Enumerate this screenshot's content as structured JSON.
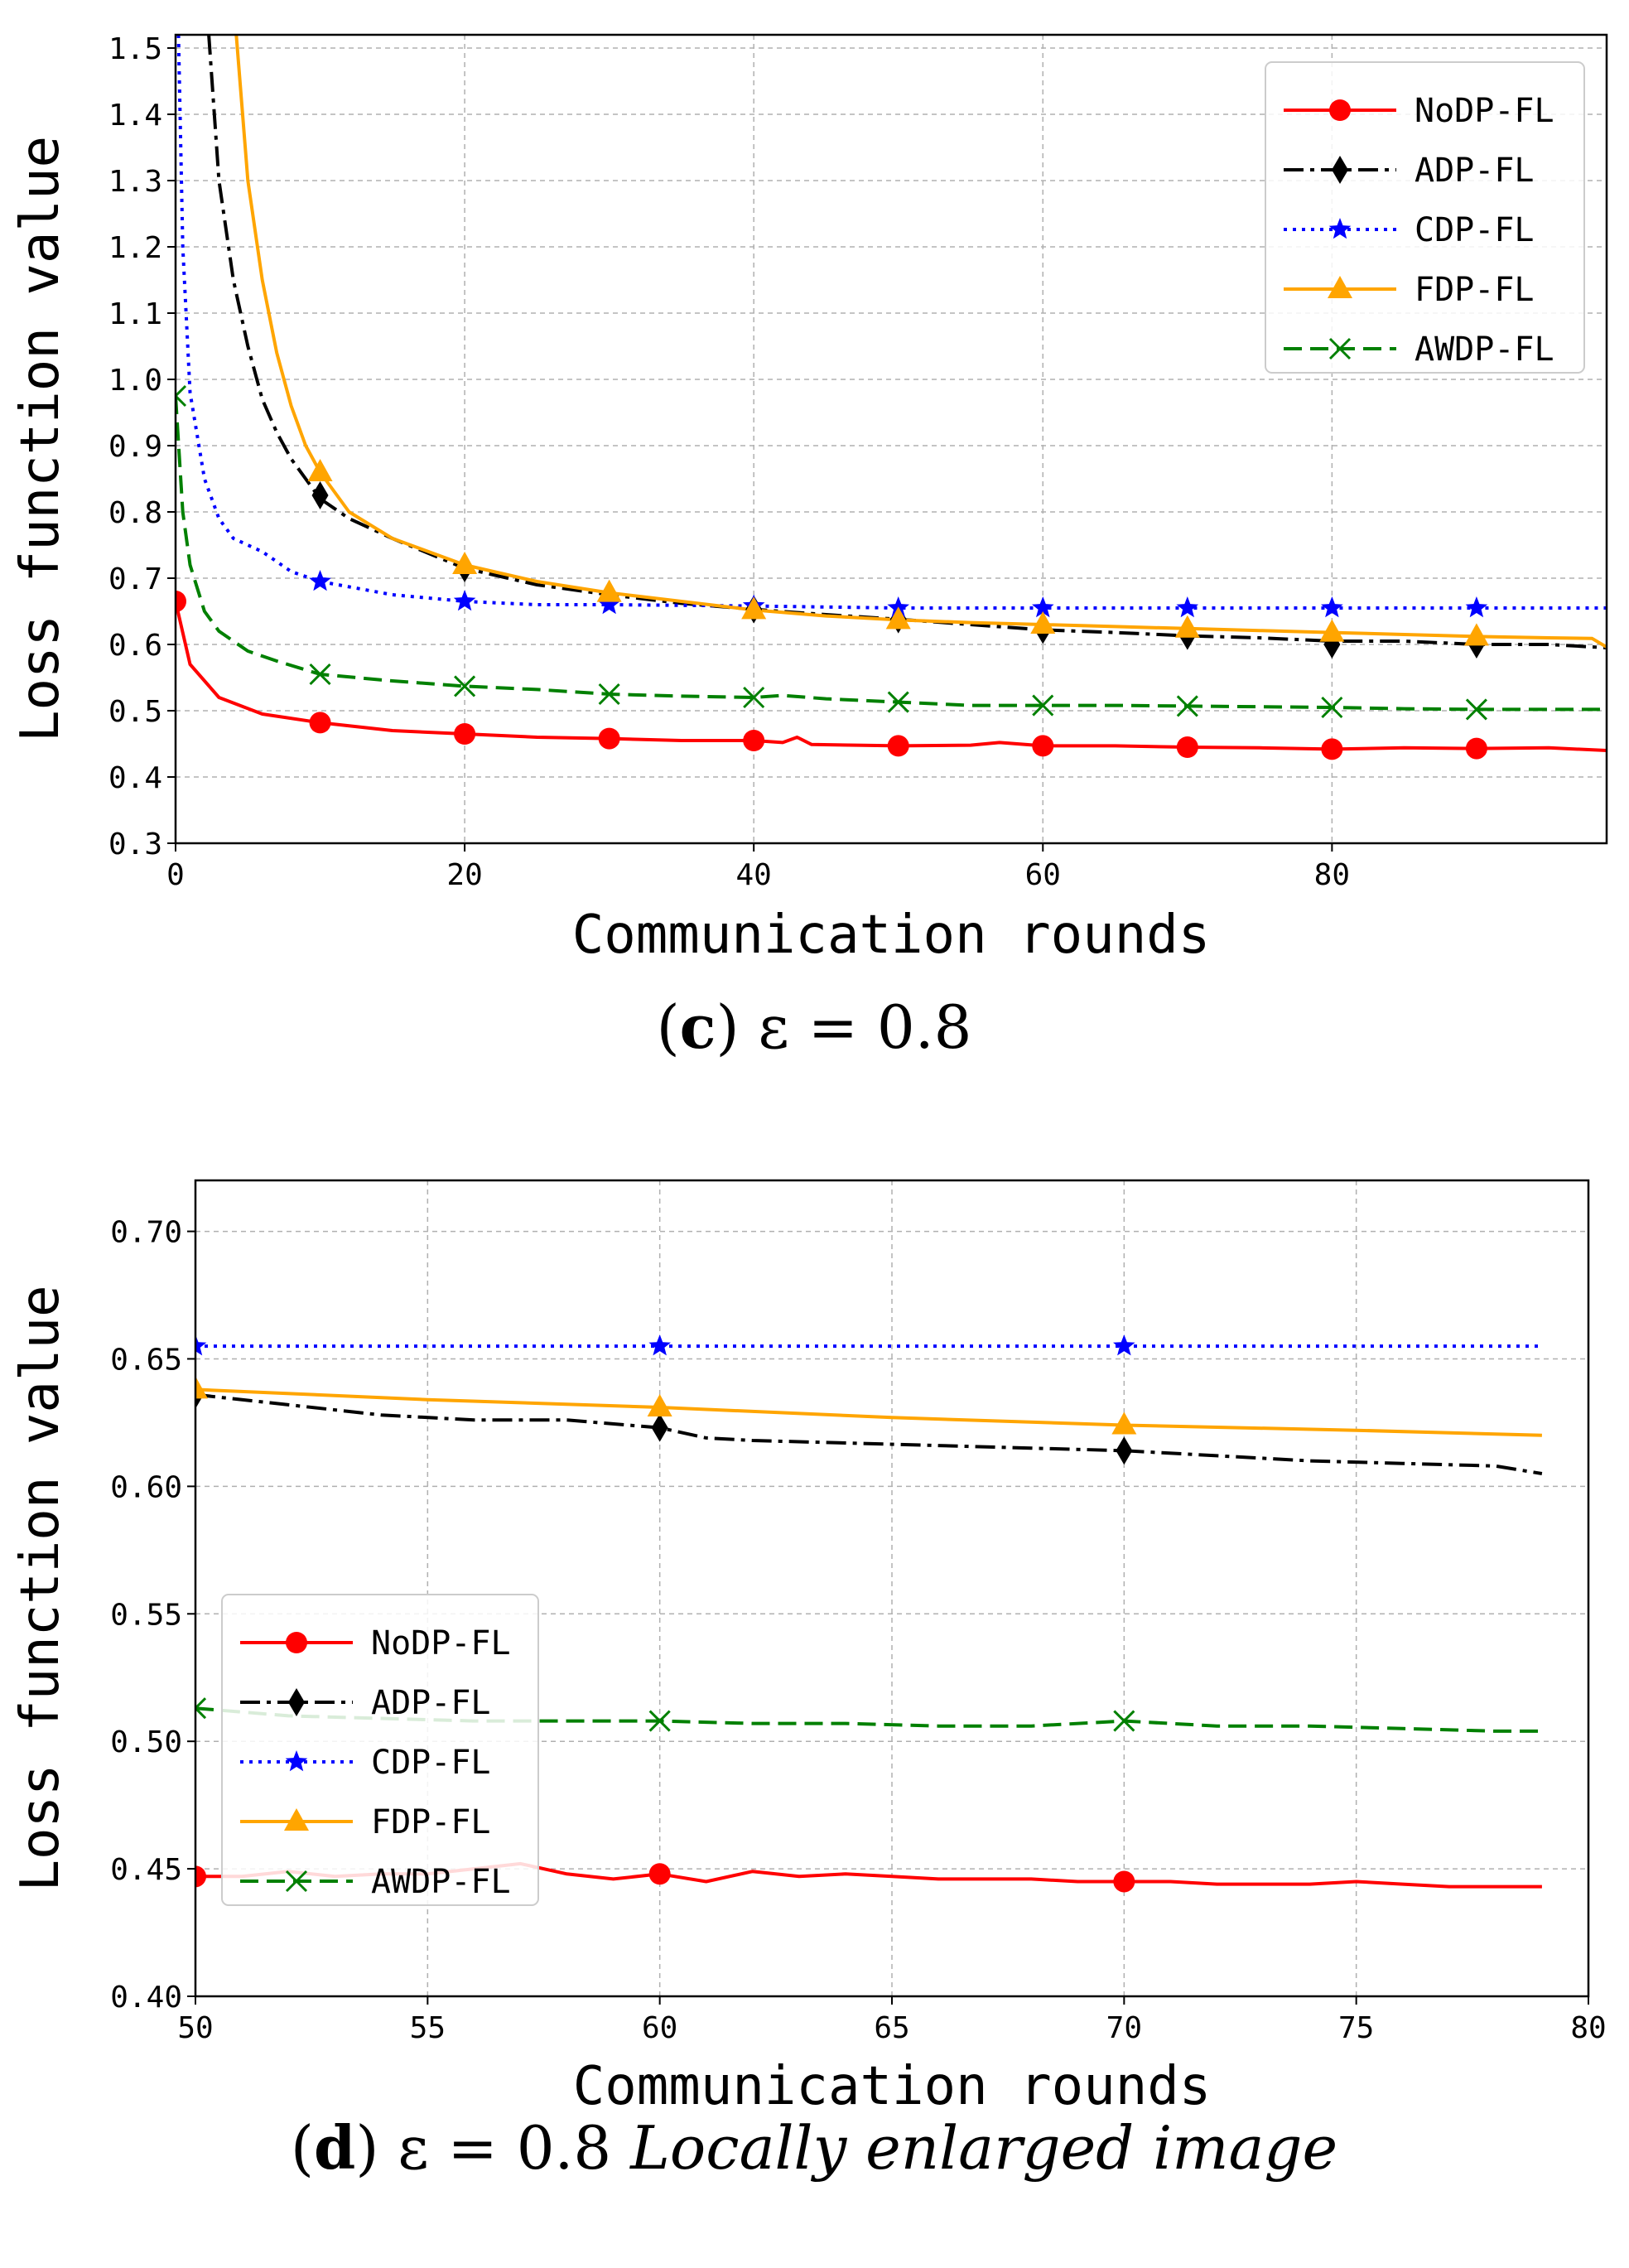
{
  "chart_data": [
    {
      "id": "c",
      "type": "line",
      "caption": {
        "label": "c",
        "text": "ε = 0.8",
        "suffix": ""
      },
      "xlabel": "Communication rounds",
      "ylabel": "Loss function value",
      "xlim": [
        0,
        99
      ],
      "ylim": [
        0.3,
        1.52
      ],
      "xticks": [
        0,
        20,
        40,
        60,
        80
      ],
      "xtick_labels": [
        "0",
        "20",
        "40",
        "60",
        "80"
      ],
      "yticks": [
        0.3,
        0.4,
        0.5,
        0.6,
        0.7,
        0.8,
        0.9,
        1.0,
        1.1,
        1.2,
        1.3,
        1.4,
        1.5
      ],
      "ytick_labels": [
        "0.3",
        "0.4",
        "0.5",
        "0.6",
        "0.7",
        "0.8",
        "0.9",
        "1.0",
        "1.1",
        "1.2",
        "1.3",
        "1.4",
        "1.5"
      ],
      "grid": true,
      "legend": {
        "position": "top-right",
        "entries": [
          "NoDP-FL",
          "ADP-FL",
          "CDP-FL",
          "FDP-FL",
          "AWDP-FL"
        ]
      },
      "series": [
        {
          "name": "NoDP-FL",
          "color": "#ff0000",
          "dash": "solid",
          "marker": "circle",
          "x": [
            0,
            1,
            3,
            6,
            10,
            15,
            20,
            25,
            30,
            35,
            40,
            42,
            43,
            44,
            50,
            55,
            57,
            60,
            65,
            70,
            75,
            80,
            85,
            90,
            95,
            99
          ],
          "y": [
            0.665,
            0.57,
            0.52,
            0.495,
            0.482,
            0.47,
            0.465,
            0.46,
            0.458,
            0.455,
            0.455,
            0.452,
            0.46,
            0.449,
            0.447,
            0.448,
            0.452,
            0.447,
            0.447,
            0.445,
            0.444,
            0.442,
            0.444,
            0.443,
            0.444,
            0.44
          ],
          "markers_x": [
            0,
            10,
            20,
            30,
            40,
            50,
            60,
            70,
            80,
            90
          ],
          "markers_y": [
            0.665,
            0.482,
            0.465,
            0.458,
            0.455,
            0.447,
            0.447,
            0.445,
            0.442,
            0.443
          ]
        },
        {
          "name": "ADP-FL",
          "color": "#000000",
          "dash": "dashdot",
          "marker": "diamond",
          "x": [
            2.3,
            3,
            4,
            5,
            6,
            7,
            8,
            10,
            12,
            15,
            20,
            25,
            30,
            35,
            40,
            45,
            50,
            55,
            60,
            65,
            70,
            75,
            80,
            85,
            90,
            95,
            99
          ],
          "y": [
            1.52,
            1.3,
            1.15,
            1.05,
            0.97,
            0.92,
            0.88,
            0.82,
            0.79,
            0.76,
            0.715,
            0.69,
            0.675,
            0.662,
            0.653,
            0.645,
            0.638,
            0.63,
            0.622,
            0.618,
            0.613,
            0.61,
            0.605,
            0.605,
            0.6,
            0.6,
            0.595
          ],
          "markers_x": [
            10,
            20,
            30,
            40,
            50,
            60,
            70,
            80,
            90
          ],
          "markers_y": [
            0.825,
            0.715,
            0.675,
            0.653,
            0.638,
            0.622,
            0.613,
            0.6,
            0.6
          ]
        },
        {
          "name": "CDP-FL",
          "color": "#0000ff",
          "dash": "dotted",
          "marker": "star",
          "x": [
            0.2,
            0.5,
            1,
            2,
            3,
            4,
            6,
            8,
            10,
            15,
            20,
            25,
            30,
            40,
            50,
            60,
            70,
            80,
            90,
            99
          ],
          "y": [
            1.52,
            1.2,
            0.98,
            0.85,
            0.79,
            0.76,
            0.74,
            0.71,
            0.695,
            0.675,
            0.665,
            0.66,
            0.66,
            0.658,
            0.655,
            0.655,
            0.655,
            0.655,
            0.655,
            0.655
          ],
          "markers_x": [
            10,
            20,
            30,
            40,
            50,
            60,
            70,
            80,
            90
          ],
          "markers_y": [
            0.695,
            0.665,
            0.66,
            0.658,
            0.655,
            0.655,
            0.655,
            0.655,
            0.655
          ]
        },
        {
          "name": "FDP-FL",
          "color": "#ffa500",
          "dash": "solid",
          "marker": "triangle",
          "x": [
            4.2,
            5,
            6,
            7,
            8,
            9,
            10,
            12,
            15,
            20,
            25,
            30,
            35,
            40,
            45,
            50,
            55,
            60,
            65,
            70,
            75,
            80,
            85,
            90,
            95,
            98,
            99
          ],
          "y": [
            1.52,
            1.3,
            1.15,
            1.04,
            0.96,
            0.9,
            0.86,
            0.8,
            0.76,
            0.72,
            0.695,
            0.678,
            0.665,
            0.652,
            0.643,
            0.637,
            0.633,
            0.63,
            0.627,
            0.624,
            0.621,
            0.618,
            0.615,
            0.612,
            0.61,
            0.609,
            0.596
          ],
          "markers_x": [
            10,
            20,
            30,
            40,
            50,
            60,
            70,
            80,
            90
          ],
          "markers_y": [
            0.86,
            0.72,
            0.678,
            0.652,
            0.637,
            0.63,
            0.624,
            0.618,
            0.612
          ]
        },
        {
          "name": "AWDP-FL",
          "color": "#008000",
          "dash": "dashed",
          "marker": "x",
          "x": [
            0,
            0.5,
            1,
            2,
            3,
            5,
            7,
            10,
            15,
            20,
            25,
            30,
            35,
            40,
            42,
            45,
            50,
            55,
            60,
            65,
            70,
            75,
            80,
            85,
            90,
            95,
            99
          ],
          "y": [
            0.975,
            0.8,
            0.72,
            0.65,
            0.62,
            0.59,
            0.575,
            0.555,
            0.545,
            0.537,
            0.532,
            0.525,
            0.522,
            0.52,
            0.523,
            0.518,
            0.513,
            0.508,
            0.508,
            0.508,
            0.507,
            0.506,
            0.505,
            0.503,
            0.502,
            0.502,
            0.502
          ],
          "markers_x": [
            0,
            10,
            20,
            30,
            40,
            50,
            60,
            70,
            80,
            90
          ],
          "markers_y": [
            0.975,
            0.555,
            0.537,
            0.525,
            0.52,
            0.513,
            0.508,
            0.507,
            0.505,
            0.502
          ]
        }
      ]
    },
    {
      "id": "d",
      "type": "line",
      "caption": {
        "label": "d",
        "text": "ε = 0.8",
        "suffix": "Locally enlarged image"
      },
      "xlabel": "Communication rounds",
      "ylabel": "Loss function value",
      "xlim": [
        50,
        80
      ],
      "ylim": [
        0.4,
        0.72
      ],
      "xticks": [
        50,
        55,
        60,
        65,
        70,
        75,
        80
      ],
      "xtick_labels": [
        "50",
        "55",
        "60",
        "65",
        "70",
        "75",
        "80"
      ],
      "yticks": [
        0.4,
        0.45,
        0.5,
        0.55,
        0.6,
        0.65,
        0.7
      ],
      "ytick_labels": [
        "0.40",
        "0.45",
        "0.50",
        "0.55",
        "0.60",
        "0.65",
        "0.70"
      ],
      "grid": true,
      "legend": {
        "position": "center-left",
        "entries": [
          "NoDP-FL",
          "ADP-FL",
          "CDP-FL",
          "FDP-FL",
          "AWDP-FL"
        ]
      },
      "series": [
        {
          "name": "NoDP-FL",
          "color": "#ff0000",
          "dash": "solid",
          "marker": "circle",
          "x": [
            50,
            51,
            52,
            53,
            54,
            55,
            56,
            57,
            58,
            59,
            60,
            61,
            62,
            63,
            64,
            65,
            66,
            67,
            68,
            69,
            70,
            71,
            72,
            73,
            74,
            75,
            76,
            77,
            78,
            79
          ],
          "y": [
            0.447,
            0.447,
            0.449,
            0.447,
            0.448,
            0.448,
            0.45,
            0.452,
            0.448,
            0.446,
            0.448,
            0.445,
            0.449,
            0.447,
            0.448,
            0.447,
            0.446,
            0.446,
            0.446,
            0.445,
            0.445,
            0.445,
            0.444,
            0.444,
            0.444,
            0.445,
            0.444,
            0.443,
            0.443,
            0.443
          ],
          "markers_x": [
            50,
            60,
            70
          ],
          "markers_y": [
            0.447,
            0.448,
            0.445
          ]
        },
        {
          "name": "ADP-FL",
          "color": "#000000",
          "dash": "dashdot",
          "marker": "diamond",
          "x": [
            50,
            52,
            54,
            56,
            58,
            60,
            61,
            62,
            64,
            66,
            68,
            70,
            72,
            74,
            76,
            78,
            79
          ],
          "y": [
            0.636,
            0.632,
            0.628,
            0.626,
            0.626,
            0.623,
            0.619,
            0.618,
            0.617,
            0.616,
            0.615,
            0.614,
            0.612,
            0.61,
            0.609,
            0.608,
            0.605
          ],
          "markers_x": [
            50,
            60,
            70
          ],
          "markers_y": [
            0.636,
            0.623,
            0.614
          ]
        },
        {
          "name": "CDP-FL",
          "color": "#0000ff",
          "dash": "dotted",
          "marker": "star",
          "x": [
            50,
            60,
            70,
            79
          ],
          "y": [
            0.655,
            0.655,
            0.655,
            0.655
          ],
          "markers_x": [
            50,
            60,
            70
          ],
          "markers_y": [
            0.655,
            0.655,
            0.655
          ]
        },
        {
          "name": "FDP-FL",
          "color": "#ffa500",
          "dash": "solid",
          "marker": "triangle",
          "x": [
            50,
            55,
            60,
            65,
            70,
            75,
            79
          ],
          "y": [
            0.638,
            0.634,
            0.631,
            0.627,
            0.624,
            0.622,
            0.62
          ],
          "markers_x": [
            50,
            60,
            70
          ],
          "markers_y": [
            0.638,
            0.631,
            0.624
          ]
        },
        {
          "name": "AWDP-FL",
          "color": "#008000",
          "dash": "dashed",
          "marker": "x",
          "x": [
            50,
            52,
            54,
            56,
            58,
            60,
            62,
            64,
            66,
            68,
            70,
            72,
            74,
            76,
            78,
            79
          ],
          "y": [
            0.513,
            0.51,
            0.509,
            0.508,
            0.508,
            0.508,
            0.507,
            0.507,
            0.506,
            0.506,
            0.508,
            0.506,
            0.506,
            0.505,
            0.504,
            0.504
          ],
          "markers_x": [
            50,
            60,
            70
          ],
          "markers_y": [
            0.513,
            0.508,
            0.508
          ]
        }
      ]
    }
  ]
}
